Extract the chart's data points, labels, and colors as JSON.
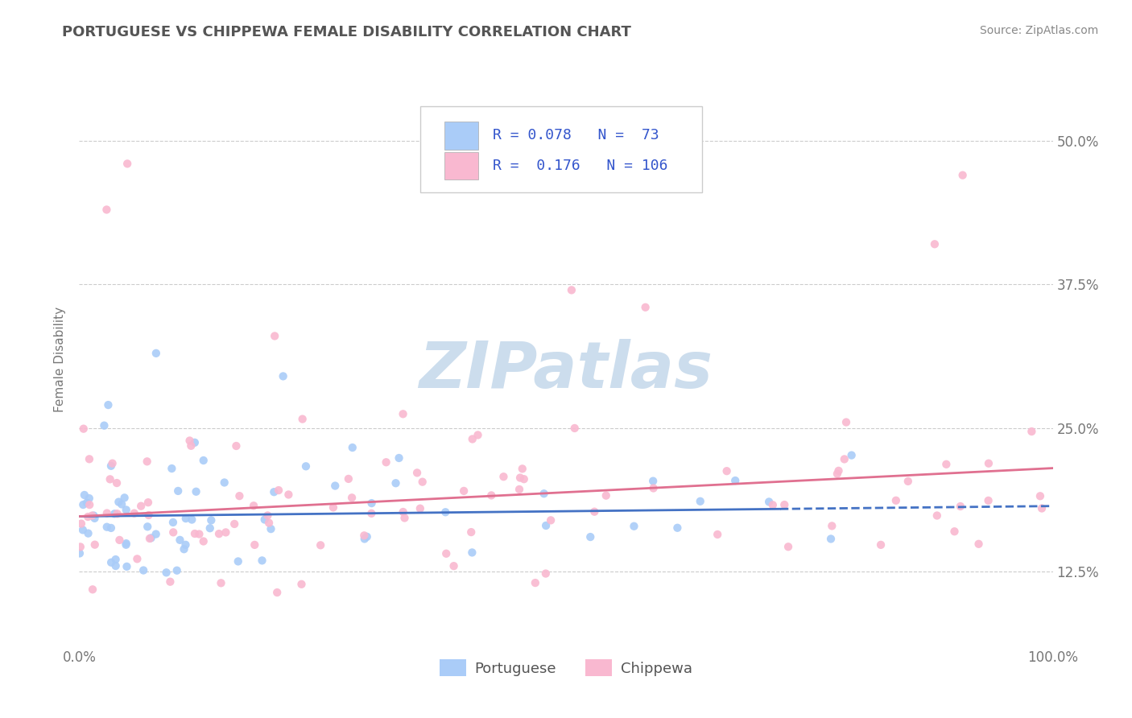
{
  "title": "PORTUGUESE VS CHIPPEWA FEMALE DISABILITY CORRELATION CHART",
  "source": "Source: ZipAtlas.com",
  "ylabel": "Female Disability",
  "xlim": [
    0.0,
    1.0
  ],
  "ylim": [
    0.06,
    0.56
  ],
  "xticks": [
    0.0,
    0.25,
    0.5,
    0.75,
    1.0
  ],
  "xticklabels": [
    "0.0%",
    "",
    "",
    "",
    "100.0%"
  ],
  "yticks": [
    0.125,
    0.25,
    0.375,
    0.5
  ],
  "yticklabels": [
    "12.5%",
    "25.0%",
    "37.5%",
    "50.0%"
  ],
  "portuguese_color": "#aaccf8",
  "chippewa_color": "#f9b8d0",
  "portuguese_line_color": "#4472c4",
  "chippewa_line_color": "#e07090",
  "portuguese_R": 0.078,
  "portuguese_N": 73,
  "chippewa_R": 0.176,
  "chippewa_N": 106,
  "watermark": "ZIPatlas",
  "watermark_color": "#ccdded",
  "background_color": "#ffffff",
  "grid_color": "#cccccc",
  "title_color": "#555555",
  "legend_label_portuguese": "Portuguese",
  "legend_label_chippewa": "Chippewa"
}
